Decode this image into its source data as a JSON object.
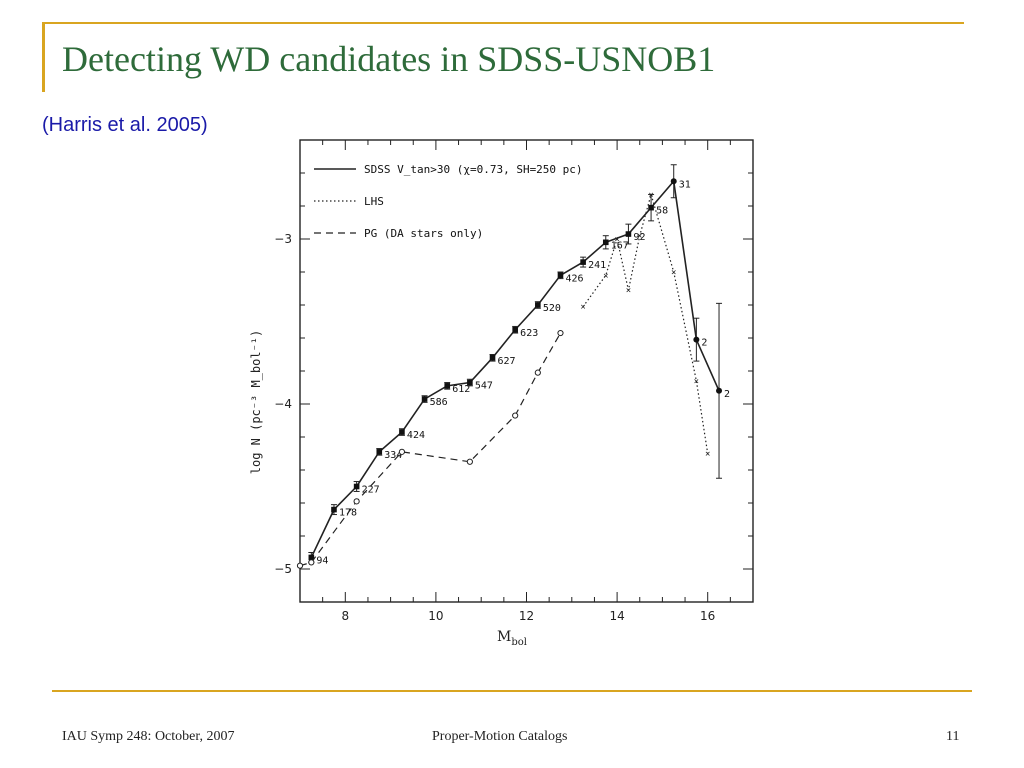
{
  "slide": {
    "title": "Detecting WD candidates in SDSS-USNOB1",
    "subtitle": "(Harris et al. 2005)",
    "footer_left": "IAU Symp 248: October, 2007",
    "footer_center": "Proper-Motion Catalogs",
    "footer_right": "11"
  },
  "colors": {
    "accent": "#d9a520",
    "title": "#2e6b3a",
    "subtitle": "#1a1aa8"
  },
  "chart_data": {
    "type": "line",
    "xlabel_main": "M",
    "xlabel_sub": "bol",
    "ylabel": "log N  (pc⁻³ M_bol⁻¹)",
    "xlim": [
      7,
      17
    ],
    "ylim": [
      -5.2,
      -2.4
    ],
    "xticks": [
      8,
      10,
      12,
      14,
      16
    ],
    "yticks": [
      -5,
      -4,
      -3
    ],
    "legend_position": "top-left",
    "legend": [
      {
        "style": "solid",
        "label": "SDSS V_tan>30 (χ=0.73, SH=250 pc)"
      },
      {
        "style": "dotted",
        "label": "LHS"
      },
      {
        "style": "dashed",
        "label": "PG (DA stars only)"
      }
    ],
    "series": [
      {
        "name": "SDSS V_tan>30 (χ=0.73, SH=250 pc)",
        "style": "solid",
        "x": [
          7.25,
          7.75,
          8.25,
          8.75,
          9.25,
          9.75,
          10.25,
          10.75,
          11.25,
          11.75,
          12.25,
          12.75,
          13.25,
          13.75,
          14.25,
          14.75,
          15.25,
          15.75,
          16.25
        ],
        "y": [
          -4.93,
          -4.64,
          -4.5,
          -4.29,
          -4.17,
          -3.97,
          -3.89,
          -3.87,
          -3.72,
          -3.55,
          -3.4,
          -3.22,
          -3.14,
          -3.02,
          -2.97,
          -2.81,
          -2.65,
          -3.61,
          -3.92
        ],
        "labels": [
          "94",
          "178",
          "227",
          "334",
          "424",
          "586",
          "612",
          "547",
          "627",
          "623",
          "520",
          "426",
          "241",
          "167",
          "92",
          "58",
          "31",
          "2",
          "2"
        ],
        "err": [
          0.03,
          0.03,
          0.03,
          0.02,
          0.02,
          0.02,
          0.02,
          0.02,
          0.02,
          0.02,
          0.02,
          0.02,
          0.03,
          0.04,
          0.06,
          0.08,
          0.1,
          0.13,
          0.53
        ]
      },
      {
        "name": "LHS",
        "style": "dotted",
        "x": [
          13.25,
          13.75,
          14.0,
          14.25,
          14.5,
          14.75,
          15.25,
          15.75,
          16.0
        ],
        "y": [
          -3.41,
          -3.22,
          -3.0,
          -3.31,
          -2.98,
          -2.73,
          -3.2,
          -3.86,
          -4.3
        ]
      },
      {
        "name": "PG (DA stars only)",
        "style": "dashed",
        "x": [
          7.0,
          7.25,
          8.25,
          9.25,
          10.75,
          11.75,
          12.25,
          12.75
        ],
        "y": [
          -4.98,
          -4.96,
          -4.59,
          -4.29,
          -4.35,
          -4.07,
          -3.81,
          -3.57
        ]
      }
    ]
  }
}
